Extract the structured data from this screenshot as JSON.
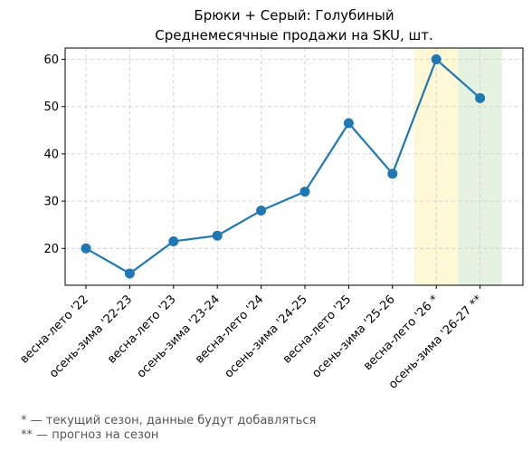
{
  "chart_data": {
    "type": "line",
    "title": "Брюки + Серый: Голубиный",
    "subtitle": "Среднемесячные продажи на SKU, шт.",
    "categories": [
      "весна-лето '22",
      "осень-зима '22-23",
      "весна-лето '23",
      "осень-зима '23-24",
      "весна-лето '24",
      "осень-зима '24-25",
      "весна-лето '25",
      "осень-зима '25-26",
      "весна-лето '26 *",
      "осень-зима '26-27 **"
    ],
    "values": [
      20.0,
      14.7,
      21.5,
      22.7,
      28.0,
      32.0,
      46.5,
      35.8,
      60.0,
      51.8
    ],
    "ylim": [
      12.2,
      62.4
    ],
    "yticks": [
      20,
      30,
      40,
      50,
      60
    ],
    "grid": true,
    "line_color": "#1f77b4",
    "highlights": [
      {
        "category_index": 8,
        "color": "#fff8d6",
        "meaning": "current-season"
      },
      {
        "category_index": 9,
        "color": "#e6f2e0",
        "meaning": "forecast"
      }
    ]
  },
  "footnotes": [
    "* — текущий сезон, данные будут добавляться",
    "** — прогноз на сезон"
  ]
}
